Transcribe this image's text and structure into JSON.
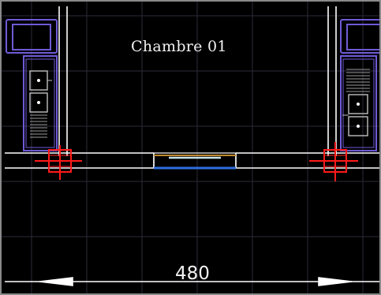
{
  "drawing": {
    "room_label": "Chambre 01",
    "dimension_value": "480",
    "background_color": "#000000",
    "grid_color": "#2b2b3a",
    "wall_color": "#ffffff",
    "furniture_color": "#6e5bd6",
    "column_marker_color": "#ff1a1a",
    "window_frame_color": "#2f6fe0",
    "window_glass_color": "#c8e2e8",
    "window_sill_color": "#c08a2c",
    "icons": [
      "sink-icon",
      "column-marker-icon",
      "dimension-arrow-icon"
    ]
  }
}
